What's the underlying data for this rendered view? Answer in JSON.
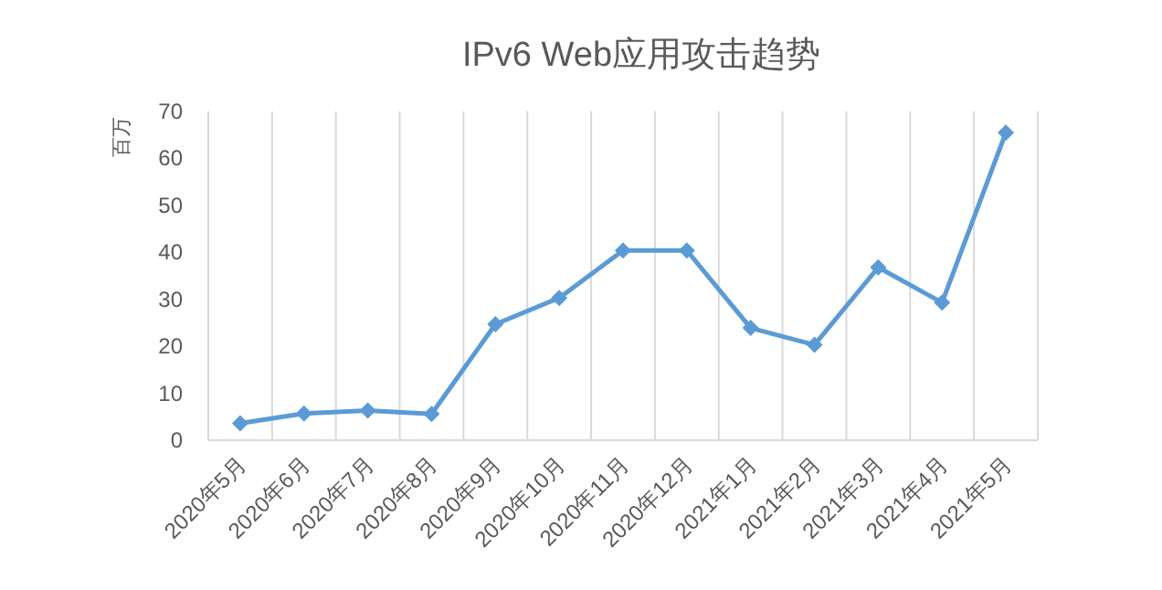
{
  "chart_data": {
    "type": "line",
    "title": "IPv6 Web应用攻击趋势",
    "ylabel": "百万",
    "categories": [
      "2020年5月",
      "2020年6月",
      "2020年7月",
      "2020年8月",
      "2020年9月",
      "2020年10月",
      "2020年11月",
      "2020年12月",
      "2021年1月",
      "2021年2月",
      "2021年3月",
      "2021年4月",
      "2021年5月"
    ],
    "series": [
      {
        "color": "#5b9bd5",
        "values": [
          3.6,
          5.7,
          6.3,
          5.6,
          24.7,
          30.3,
          40.4,
          40.4,
          23.9,
          20.3,
          36.8,
          29.3,
          65.5
        ]
      }
    ],
    "ylim": [
      0,
      70
    ],
    "yticks": [
      0,
      10,
      20,
      30,
      40,
      50,
      60,
      70
    ],
    "grid": "x",
    "marker": "diamond"
  }
}
